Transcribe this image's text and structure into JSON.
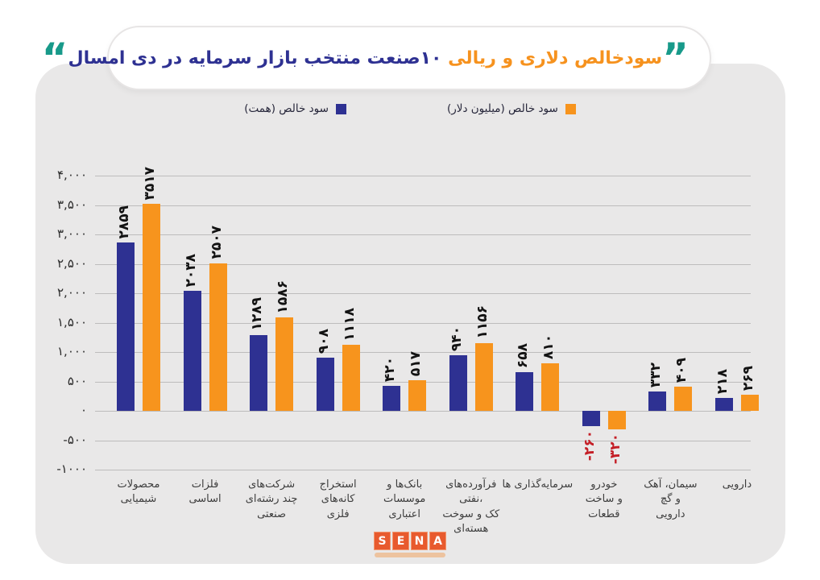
{
  "title": {
    "highlight": "سودخالص دلاری و ریالی",
    "rest": "۱۰صنعت منتخب بازار سرمایه در دی امسال",
    "quote_close": "”",
    "quote_open": "“"
  },
  "legend": [
    {
      "label": "سود خالص (میلیون دلار)",
      "color": "#f7941d"
    },
    {
      "label": "سود خالص (همت)",
      "color": "#2e3192"
    }
  ],
  "colors": {
    "card_bg": "#e9e8e8",
    "bar_blue": "#2e3192",
    "bar_orange": "#f7941d",
    "title_orange": "#f6921e",
    "title_navy": "#2e3192",
    "quote_teal": "#189a8a",
    "negative_label_red": "#c41e26",
    "gridline": "#bdbcbc"
  },
  "logo": {
    "letters": [
      "S",
      "E",
      "N",
      "A"
    ]
  },
  "chart_data": {
    "type": "bar",
    "title": "سودخالص دلاری و ریالی ۱۰صنعت منتخب بازار سرمایه در دی امسال",
    "categories": [
      "محصولات شیمیایی",
      "فلزات اساسی",
      "شرکت‌های چند رشته‌ای صنعتی",
      "استخراج کانه‌های فلزی",
      "بانک‌ها و موسسات اعتباری",
      "فرآورده‌های نفتی، کک و سوخت هسته‌ای",
      "سرمایه‌گذاری ها",
      "خودرو و ساخت قطعات",
      "سیمان، آهک و گچ دارویی",
      "دارویی"
    ],
    "category_lines": [
      [
        "محصولات",
        "شیمیایی"
      ],
      [
        "فلزات",
        "اساسی"
      ],
      [
        "شرکت‌های",
        "چند رشته‌ای",
        "صنعتی"
      ],
      [
        "استخراج",
        "کانه‌های",
        "فلزی"
      ],
      [
        "بانک‌ها و",
        "موسسات",
        "اعتباری"
      ],
      [
        "فرآورده‌های",
        "،نفتی",
        "کک و سوخت",
        "هسته‌ای"
      ],
      [
        "سرمایه‌گذاری ها"
      ],
      [
        "خودرو",
        "و ساخت",
        "قطعات"
      ],
      [
        "سیمان، آهک",
        "و گچ",
        "دارویی"
      ],
      [
        "دارویی"
      ]
    ],
    "series": [
      {
        "name": "سود خالص (همت)",
        "color": "#2e3192",
        "values": [
          2859,
          2038,
          1289,
          908,
          420,
          940,
          658,
          -260,
          332,
          218
        ],
        "labels": [
          "۲۸۵۹",
          "۲۰۳۸",
          "۱۲۸۹",
          "۹۰۸",
          "۴۲۰",
          "۹۴۰",
          "۶۵۸",
          "-۲۶۰",
          "۳۳۲",
          "۲۱۸"
        ]
      },
      {
        "name": "سود خالص (میلیون دلار)",
        "color": "#f7941d",
        "values": [
          3517,
          2507,
          1586,
          1118,
          517,
          1156,
          810,
          -320,
          409,
          269
        ],
        "labels": [
          "۳۵۱۷",
          "۲۵۰۷",
          "۱۵۸۶",
          "۱۱۱۸",
          "۵۱۷",
          "۱۱۵۶",
          "۸۱۰",
          "-۳۲۰",
          "۴۰۹",
          "۲۶۹"
        ]
      }
    ],
    "ylim": [
      -1000,
      4000
    ],
    "yticks": [
      4000,
      3500,
      3000,
      2500,
      2000,
      1500,
      1000,
      500,
      0,
      -500,
      -1000
    ],
    "yticks_display": [
      "۴,۰۰۰",
      "۳,۵۰۰",
      "۳,۰۰۰",
      "۲,۵۰۰",
      "۲,۰۰۰",
      "۱,۵۰۰",
      "۱,۰۰۰",
      "۵۰۰",
      "۰",
      "-۵۰۰",
      "-۱۰۰۰"
    ],
    "grid": true,
    "legend_position": "top",
    "value_labels_rotated": true
  }
}
